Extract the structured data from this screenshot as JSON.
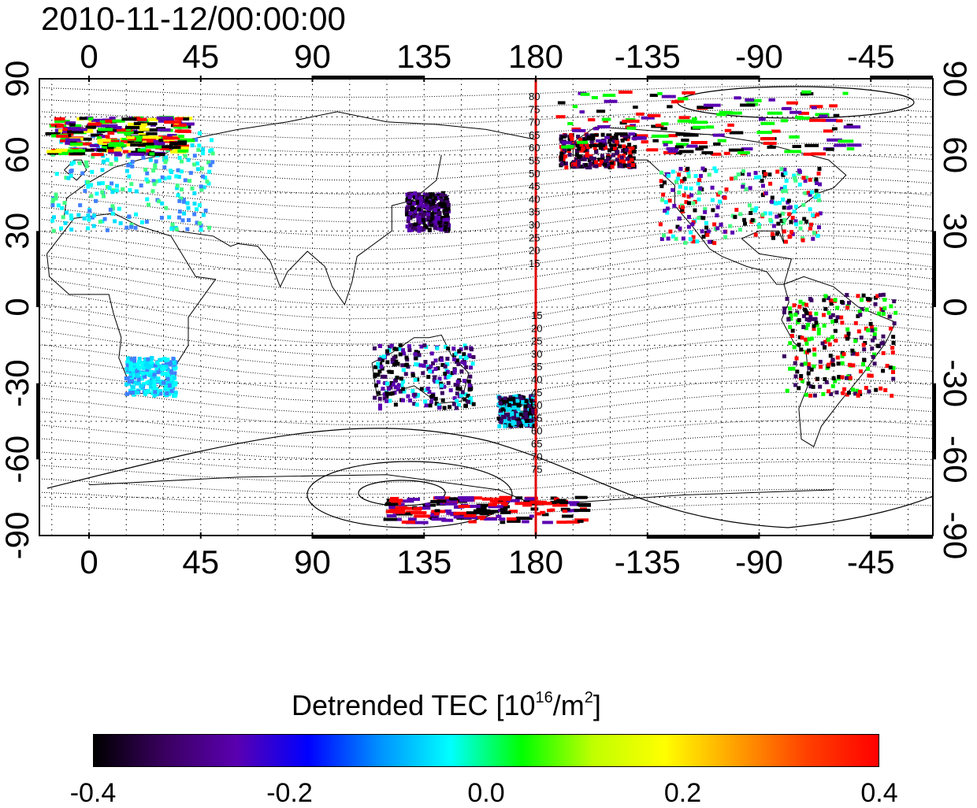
{
  "timestamp": "2010-11-12/00:00:00",
  "colorbar": {
    "title_prefix": "Detrended TEC  [10",
    "title_exp1": "16",
    "title_mid": "/m",
    "title_exp2": "2",
    "title_suffix": "]",
    "ticks": [
      "-0.4",
      "-0.2",
      "0.0",
      "0.2",
      "0.4"
    ],
    "colors": [
      "#000000",
      "#3a0060",
      "#5a00b0",
      "#0000ff",
      "#0090ff",
      "#00ffff",
      "#00ff00",
      "#c0ff00",
      "#ffff00",
      "#ffa000",
      "#ff4000",
      "#ff0000"
    ]
  },
  "axes": {
    "lon_labels": [
      "0",
      "45",
      "90",
      "135",
      "180",
      "-135",
      "-90",
      "-45"
    ],
    "lat_left_labels": [
      "90",
      "60",
      "30",
      "0",
      "-30",
      "-60",
      "-90"
    ],
    "lat_right_labels": [
      "90",
      "60",
      "30",
      "0",
      "-30",
      "-60",
      "-90"
    ],
    "central_meridian_color": "#e00000"
  },
  "contour_labels": {
    "north": [
      "80",
      "75",
      "70",
      "65",
      "60",
      "55",
      "50",
      "45",
      "40",
      "35",
      "30",
      "25",
      "20",
      "15"
    ],
    "south": [
      "15",
      "20",
      "25",
      "30",
      "35",
      "40",
      "45",
      "50",
      "55",
      "60",
      "65",
      "70",
      "75"
    ]
  },
  "data_regions": [
    {
      "name": "europe",
      "lon": [
        -15,
        50
      ],
      "lat": [
        30,
        70
      ],
      "palette": [
        "#00e0ff",
        "#40ff80",
        "#4080ff",
        "#00ffff"
      ]
    },
    {
      "name": "north-europe",
      "lon": [
        -15,
        40
      ],
      "lat": [
        60,
        75
      ],
      "palette": [
        "#ff0000",
        "#00ff00",
        "#ffff00",
        "#5a00b0",
        "#000000"
      ]
    },
    {
      "name": "africa-south",
      "lon": [
        15,
        35
      ],
      "lat": [
        -35,
        -20
      ],
      "palette": [
        "#00e0ff",
        "#4080ff",
        "#00ffff"
      ]
    },
    {
      "name": "japan",
      "lon": [
        128,
        145
      ],
      "lat": [
        30,
        45
      ],
      "palette": [
        "#000000",
        "#3a0060",
        "#5a00b0"
      ]
    },
    {
      "name": "australia",
      "lon": [
        115,
        155
      ],
      "lat": [
        -40,
        -15
      ],
      "palette": [
        "#000000",
        "#3a0060",
        "#5a00b0",
        "#00ffff"
      ]
    },
    {
      "name": "new-zealand",
      "lon": [
        165,
        180
      ],
      "lat": [
        -47,
        -35
      ],
      "palette": [
        "#000000",
        "#3a0060",
        "#00e0ff"
      ]
    },
    {
      "name": "alaska",
      "lon": [
        -170,
        -140
      ],
      "lat": [
        55,
        68
      ],
      "palette": [
        "#000000",
        "#3a0060",
        "#ff0000"
      ]
    },
    {
      "name": "north-america",
      "lon": [
        -130,
        -65
      ],
      "lat": [
        25,
        55
      ],
      "palette": [
        "#00ffff",
        "#40ff80",
        "#5a00b0",
        "#000000",
        "#ff0000"
      ]
    },
    {
      "name": "canada-north",
      "lon": [
        -170,
        -50
      ],
      "lat": [
        60,
        85
      ],
      "palette": [
        "#ff0000",
        "#000000",
        "#5a00b0",
        "#00ff00"
      ]
    },
    {
      "name": "south-america",
      "lon": [
        -80,
        -35
      ],
      "lat": [
        -35,
        5
      ],
      "palette": [
        "#000000",
        "#ff0000",
        "#3a0060",
        "#00ff00"
      ]
    },
    {
      "name": "antarctica",
      "lon": [
        120,
        200
      ],
      "lat": [
        -85,
        -75
      ],
      "palette": [
        "#ff0000",
        "#000000",
        "#5a00b0"
      ]
    }
  ]
}
